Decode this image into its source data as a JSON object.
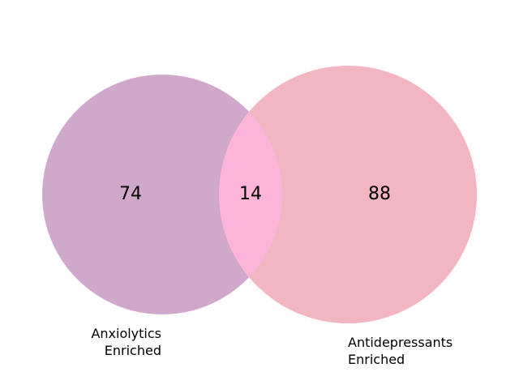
{
  "venn": {
    "sets": [
      {
        "label_lines": [
          "Anxiolytics",
          "Enriched"
        ],
        "only_count": "74",
        "color": "#d0a8cb"
      },
      {
        "label_lines": [
          "Antidepressants",
          "Enriched"
        ],
        "only_count": "88",
        "color": "#f2b5c2"
      }
    ],
    "intersection": {
      "count": "14",
      "color": "#fcb5d8"
    }
  }
}
